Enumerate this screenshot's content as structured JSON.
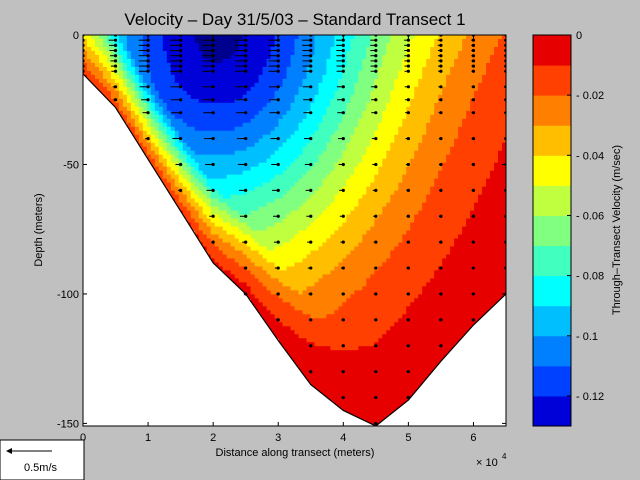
{
  "chart_data": {
    "type": "heatmap",
    "title": "Velocity – Day 31/5/03 – Standard Transect 1",
    "xlabel": "Distance along transect (meters)",
    "ylabel": "Depth (meters)",
    "x_exponent_label": "× 10",
    "x_exponent_power": "4",
    "xlim": [
      0,
      65000
    ],
    "ylim": [
      -151,
      0
    ],
    "x_ticks": [
      {
        "value": 0,
        "label": "0"
      },
      {
        "value": 10000,
        "label": "1"
      },
      {
        "value": 20000,
        "label": "2"
      },
      {
        "value": 30000,
        "label": "3"
      },
      {
        "value": 40000,
        "label": "4"
      },
      {
        "value": 50000,
        "label": "5"
      },
      {
        "value": 60000,
        "label": "6"
      }
    ],
    "y_ticks": [
      {
        "value": 0,
        "label": "0"
      },
      {
        "value": -50,
        "label": "-50"
      },
      {
        "value": -100,
        "label": "-100"
      },
      {
        "value": -150,
        "label": "-150"
      }
    ],
    "bottom_profile": [
      [
        0,
        -15
      ],
      [
        5000,
        -28
      ],
      [
        10000,
        -48
      ],
      [
        15000,
        -68
      ],
      [
        20000,
        -88
      ],
      [
        25000,
        -100
      ],
      [
        30000,
        -118
      ],
      [
        35000,
        -135
      ],
      [
        40000,
        -145
      ],
      [
        45000,
        -151
      ],
      [
        50000,
        -141
      ],
      [
        55000,
        -126
      ],
      [
        60000,
        -112
      ],
      [
        65000,
        -100
      ]
    ],
    "sample_depths": [
      0,
      -2,
      -4,
      -6,
      -8,
      -10,
      -12,
      -14,
      -20,
      -25,
      -30,
      -40,
      -50,
      -60,
      -70,
      -80,
      -90,
      -100,
      -110,
      -120,
      -130,
      -140,
      -150
    ],
    "station_x": [
      0,
      5000,
      10000,
      15000,
      20000,
      25000,
      30000,
      35000,
      40000,
      45000,
      50000,
      55000,
      60000,
      65000
    ],
    "color_levels": [
      -0.13,
      -0.12,
      -0.11,
      -0.1,
      -0.09,
      -0.08,
      -0.07,
      -0.06,
      -0.05,
      -0.04,
      -0.03,
      -0.02,
      -0.01,
      0
    ],
    "colors": [
      "#00008f",
      "#0000d8",
      "#0040ff",
      "#0080ff",
      "#00bfff",
      "#00ffff",
      "#40ffbf",
      "#80ff80",
      "#bfff40",
      "#ffff00",
      "#ffbf00",
      "#ff8000",
      "#ff4000",
      "#e60000",
      "#b00000"
    ],
    "velocity_field": {
      "min_value": -0.13,
      "max_value": 0,
      "core_min": {
        "x": 20000,
        "depth": 0,
        "value": -0.13
      }
    },
    "colorbar": {
      "label": "Through–Transect Velocity (m/sec)",
      "range": [
        -0.13,
        0
      ],
      "ticks": [
        {
          "value": 0,
          "label": "0"
        },
        {
          "value": -0.02,
          "label": "- 0.02"
        },
        {
          "value": -0.04,
          "label": "- 0.04"
        },
        {
          "value": -0.06,
          "label": "- 0.06"
        },
        {
          "value": -0.08,
          "label": "- 0.08"
        },
        {
          "value": -0.1,
          "label": "- 0.1"
        },
        {
          "value": -0.12,
          "label": "- 0.12"
        }
      ]
    },
    "grid": false,
    "legend": {
      "position": "bottom-left",
      "label": "0.5m/s",
      "arrow_value": 0.5,
      "arrow_direction": "left"
    }
  }
}
